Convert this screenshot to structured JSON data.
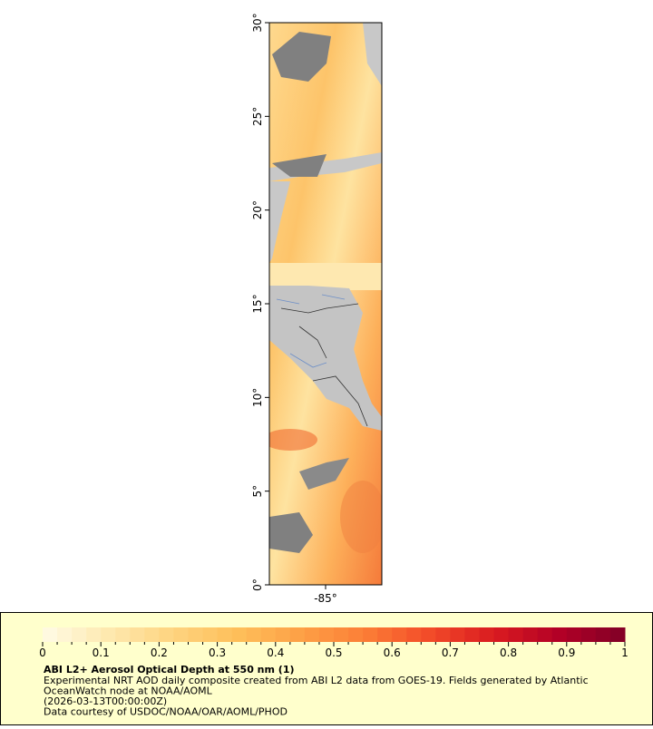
{
  "map": {
    "ylim": [
      0,
      30
    ],
    "yticks": [
      {
        "value": 0,
        "label": "0°"
      },
      {
        "value": 5,
        "label": "5°"
      },
      {
        "value": 10,
        "label": "10°"
      },
      {
        "value": 15,
        "label": "15°"
      },
      {
        "value": 20,
        "label": "20°"
      },
      {
        "value": 25,
        "label": "25°"
      },
      {
        "value": 30,
        "label": "30°"
      }
    ],
    "xlim": [
      -88,
      -82
    ],
    "xticks": [
      {
        "value": -85,
        "label": "-85°"
      }
    ]
  },
  "legend": {
    "colorbar": {
      "range": [
        0,
        1
      ],
      "ticks": [
        0,
        0.1,
        0.2,
        0.3,
        0.4,
        0.5,
        0.6,
        0.7,
        0.8,
        0.9,
        1
      ],
      "colors": [
        "#fffbe6",
        "#fee9b0",
        "#fed480",
        "#febf5a",
        "#fda046",
        "#fc7d36",
        "#f24a28",
        "#d91a20",
        "#b10026",
        "#800026"
      ]
    },
    "title": "ABI L2+ Aerosol Optical Depth at 550 nm (1)",
    "lines": [
      "Experimental NRT AOD daily composite created from ABI L2 data from GOES-19. Fields generated by Atlantic",
      "OceanWatch node at NOAA/AOML",
      "(2026-03-13T00:00:00Z)",
      "Data courtesy of USDOC/NOAA/OAR/AOML/PHOD"
    ]
  }
}
